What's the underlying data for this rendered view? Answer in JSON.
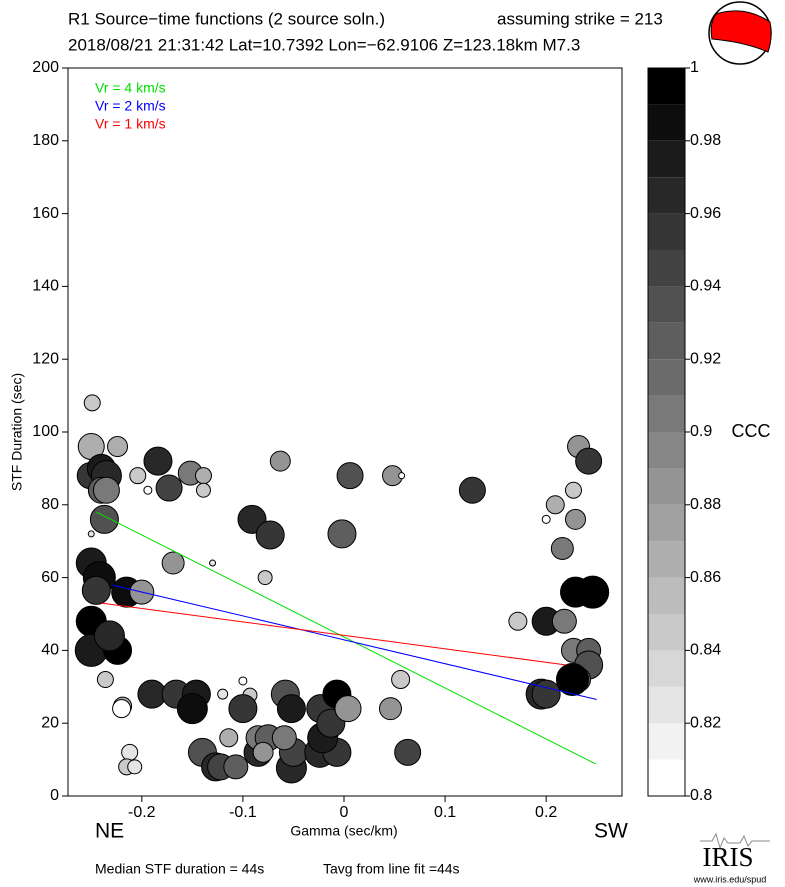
{
  "chart_data": {
    "type": "scatter",
    "title": "R1 Source−time functions (2 source soln.)",
    "strike_label": "assuming strike = 213",
    "subtitle": "2018/08/21 21:31:42  Lat=10.7392 Lon=−62.9106  Z=123.18km  M7.3",
    "x_label": "Gamma (sec/km)",
    "y_label": "STF Duration (sec)",
    "left_label": "NE",
    "right_label": "SW",
    "footer_left": "Median STF duration = 44s",
    "footer_right": "Tavg from line fit =44s",
    "logo": "IRIS",
    "logo_url": "www.iris.edu/spud",
    "xlim": [
      -0.273,
      0.275
    ],
    "ylim": [
      0,
      200
    ],
    "xticks": [
      -0.2,
      -0.1,
      0,
      0.1,
      0.2
    ],
    "yticks": [
      0,
      20,
      40,
      60,
      80,
      100,
      120,
      140,
      160,
      180,
      200
    ],
    "x": [
      -0.249,
      -0.25,
      -0.251,
      -0.24,
      -0.235,
      -0.24,
      -0.235,
      -0.224,
      -0.237,
      -0.25,
      -0.242,
      -0.245,
      -0.215,
      -0.2,
      -0.25,
      -0.24,
      -0.25,
      -0.224,
      -0.232,
      -0.236,
      -0.219,
      -0.22,
      -0.212,
      -0.215,
      -0.207,
      -0.204,
      -0.194,
      -0.25,
      -0.184,
      -0.173,
      -0.169,
      -0.13,
      -0.152,
      -0.139,
      -0.139,
      -0.19,
      -0.166,
      -0.146,
      -0.15,
      -0.14,
      -0.127,
      -0.122,
      -0.107,
      -0.114,
      -0.12,
      -0.1,
      -0.093,
      -0.1,
      -0.091,
      -0.073,
      -0.078,
      -0.063,
      -0.085,
      -0.085,
      -0.075,
      -0.08,
      -0.058,
      -0.052,
      -0.052,
      -0.05,
      -0.059,
      -0.023,
      -0.023,
      -0.007,
      -0.024,
      -0.007,
      -0.021,
      -0.013,
      0.004,
      -0.002,
      0.006,
      0.048,
      0.057,
      0.127,
      0.056,
      0.046,
      0.063,
      0.172,
      0.2,
      0.209,
      0.2,
      0.227,
      0.232,
      0.242,
      0.229,
      0.216,
      0.218,
      0.229,
      0.246,
      0.227,
      0.242,
      0.242,
      0.232,
      0.226,
      0.195,
      0.2
    ],
    "y": [
      108,
      96,
      88,
      90,
      88,
      84,
      84,
      96,
      76,
      64,
      60,
      56.5,
      56,
      56,
      48,
      44,
      40,
      40,
      44,
      32,
      24.7,
      24,
      12,
      8,
      8,
      88,
      84,
      72,
      92,
      84.6,
      64,
      64,
      88.7,
      88,
      84,
      28,
      28,
      28,
      24,
      12,
      8,
      8,
      8,
      16,
      28,
      31.6,
      27.7,
      24,
      76,
      71.7,
      60,
      92,
      12,
      16,
      16,
      12,
      28,
      24,
      7.7,
      12,
      16,
      24,
      16,
      28,
      12,
      12,
      16,
      20,
      24,
      72,
      88,
      88,
      88,
      84,
      32,
      24,
      12,
      48,
      48,
      80,
      76,
      84,
      96,
      92,
      76,
      68,
      48,
      56,
      56,
      40,
      40,
      36,
      32,
      32,
      28,
      28
    ],
    "sizes": [
      8,
      13,
      13,
      14,
      15,
      13,
      13,
      10,
      14,
      15,
      16,
      14,
      15,
      12,
      15,
      15,
      16,
      14,
      15,
      8,
      9,
      9,
      8,
      8,
      7,
      8,
      4,
      3,
      14,
      13,
      11,
      3,
      12,
      8,
      7,
      14,
      14,
      14,
      15,
      14,
      14,
      13,
      12,
      9,
      5,
      4,
      7,
      14,
      14,
      14,
      7,
      10,
      14,
      12,
      13,
      10,
      14,
      14,
      15,
      14,
      12,
      14,
      13,
      14,
      15,
      14,
      15,
      14,
      13,
      14,
      13,
      10,
      3,
      13,
      9,
      11,
      13,
      9,
      14,
      9,
      4,
      8,
      11,
      13,
      10,
      11,
      12,
      15,
      16,
      12,
      12,
      14,
      12,
      16,
      15,
      14
    ],
    "ccc": [
      0.84,
      0.86,
      0.95,
      0.97,
      0.96,
      0.92,
      0.9,
      0.86,
      0.93,
      0.97,
      0.98,
      0.95,
      0.98,
      0.88,
      0.99,
      0.99,
      0.97,
      0.99,
      0.96,
      0.84,
      0.86,
      0.8,
      0.82,
      0.84,
      0.82,
      0.84,
      0.8,
      0.82,
      0.96,
      0.94,
      0.88,
      0.82,
      0.9,
      0.86,
      0.84,
      0.96,
      0.95,
      0.97,
      0.98,
      0.93,
      0.96,
      0.94,
      0.92,
      0.86,
      0.82,
      0.8,
      0.84,
      0.95,
      0.96,
      0.95,
      0.84,
      0.88,
      0.96,
      0.9,
      0.92,
      0.88,
      0.93,
      0.97,
      0.96,
      0.94,
      0.9,
      0.95,
      0.92,
      0.99,
      0.96,
      0.95,
      0.97,
      0.95,
      0.88,
      0.92,
      0.93,
      0.88,
      0.8,
      0.95,
      0.84,
      0.88,
      0.94,
      0.84,
      0.97,
      0.86,
      0.8,
      0.84,
      0.88,
      0.95,
      0.88,
      0.9,
      0.9,
      0.99,
      0.99,
      0.9,
      0.92,
      0.93,
      0.92,
      0.99,
      0.96,
      0.95
    ],
    "lines": [
      {
        "name": "Vr = 4 km/s",
        "color": "#00e000",
        "x": [
          -0.245,
          0.249
        ],
        "y": [
          78,
          8.8
        ]
      },
      {
        "name": "Vr = 2 km/s",
        "color": "#0000ff",
        "x": [
          -0.23,
          0.25
        ],
        "y": [
          58,
          26.5
        ]
      },
      {
        "name": "Vr = 1 km/s",
        "color": "#ff0000",
        "x": [
          -0.24,
          0.22
        ],
        "y": [
          53,
          36
        ]
      }
    ],
    "colorbar": {
      "label": "CCC",
      "lim": [
        0.8,
        1
      ],
      "bands": 20,
      "ticks": [
        0.8,
        0.82,
        0.84,
        0.86,
        0.88,
        0.9,
        0.92,
        0.94,
        0.96,
        0.98,
        1
      ]
    }
  }
}
